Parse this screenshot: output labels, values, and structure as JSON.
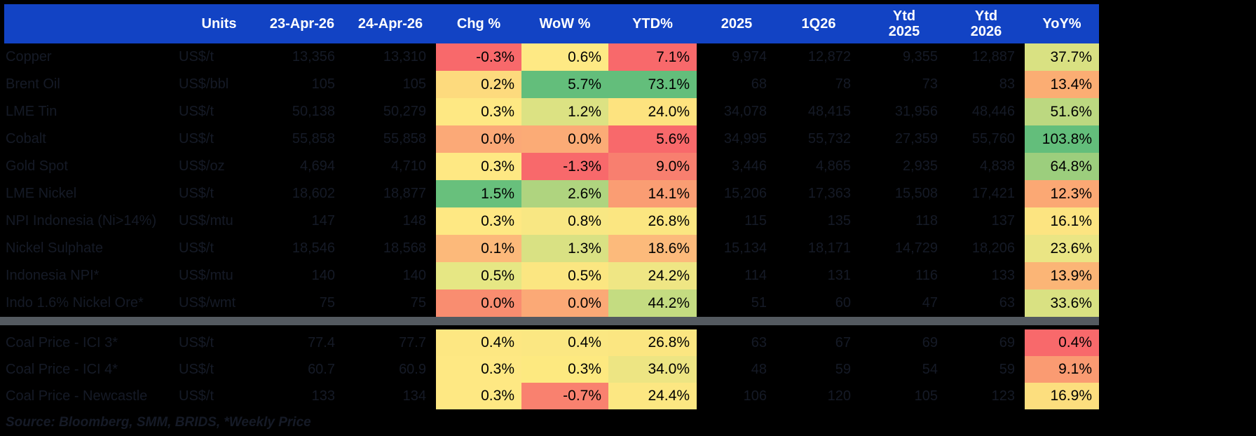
{
  "colors": {
    "background": "#000000",
    "header_bg": "#1243C4",
    "header_text": "#FFFFFF",
    "dim_text": "#151A26",
    "percent_text": "#000000",
    "separator": "#545A60"
  },
  "chart_data": {
    "type": "table",
    "title": "",
    "separator_after_row": 10,
    "source_note": "Source: Bloomberg, SMM, BRIDS, *Weekly Price",
    "columns": [
      {
        "id": "name",
        "label": ""
      },
      {
        "id": "units",
        "label": "Units"
      },
      {
        "id": "apr23",
        "label": "23-Apr-26"
      },
      {
        "id": "apr24",
        "label": "24-Apr-26"
      },
      {
        "id": "chg",
        "label": "Chg %",
        "heat": true
      },
      {
        "id": "wow",
        "label": "WoW %",
        "heat": true
      },
      {
        "id": "ytd",
        "label": "YTD%",
        "heat": true
      },
      {
        "id": "y2025",
        "label": "2025"
      },
      {
        "id": "q126",
        "label": "1Q26"
      },
      {
        "id": "ytd2025",
        "label": "Ytd",
        "label2": "2025"
      },
      {
        "id": "ytd2026",
        "label": "Ytd",
        "label2": "2026"
      },
      {
        "id": "yoy",
        "label": "YoY%",
        "heat": true
      }
    ],
    "rows": [
      {
        "name": "Copper",
        "units": "US$/t",
        "apr23": "13,356",
        "apr24": "13,310",
        "chg": "-0.3%",
        "chg_bg": "#F8696B",
        "wow": "0.6%",
        "wow_bg": "#FEE984",
        "ytd": "7.1%",
        "ytd_bg": "#F8696B",
        "y2025": "9,974",
        "q126": "12,872",
        "ytd2025": "9,355",
        "ytd2026": "12,887",
        "yoy": "37.7%",
        "yoy_bg": "#D9E182"
      },
      {
        "name": "Brent Oil",
        "units": "US$/bbl",
        "apr23": "105",
        "apr24": "105",
        "chg": "0.2%",
        "chg_bg": "#FDDA7D",
        "wow": "5.7%",
        "wow_bg": "#63BE7B",
        "ytd": "73.1%",
        "ytd_bg": "#63BE7B",
        "y2025": "68",
        "q126": "78",
        "ytd2025": "73",
        "ytd2026": "83",
        "yoy": "13.4%",
        "yoy_bg": "#FBAD73"
      },
      {
        "name": "LME Tin",
        "units": "US$/t",
        "apr23": "50,138",
        "apr24": "50,279",
        "chg": "0.3%",
        "chg_bg": "#FEE883",
        "wow": "1.2%",
        "wow_bg": "#DCE283",
        "ytd": "24.0%",
        "ytd_bg": "#FDE37F",
        "y2025": "34,078",
        "q126": "48,415",
        "ytd2025": "31,956",
        "ytd2026": "48,446",
        "yoy": "51.6%",
        "yoy_bg": "#BCD880"
      },
      {
        "name": "Cobalt",
        "units": "US$/t",
        "apr23": "55,858",
        "apr24": "55,858",
        "chg": "0.0%",
        "chg_bg": "#FBA977",
        "wow": "0.0%",
        "wow_bg": "#FBAB76",
        "ytd": "5.6%",
        "ytd_bg": "#F8696B",
        "y2025": "34,995",
        "q126": "55,732",
        "ytd2025": "27,359",
        "ytd2026": "55,760",
        "yoy": "103.8%",
        "yoy_bg": "#63BE7B"
      },
      {
        "name": "Gold Spot",
        "units": "US$/oz",
        "apr23": "4,694",
        "apr24": "4,710",
        "chg": "0.3%",
        "chg_bg": "#FEE883",
        "wow": "-1.3%",
        "wow_bg": "#F8696B",
        "ytd": "9.0%",
        "ytd_bg": "#F87F6F",
        "y2025": "3,446",
        "q126": "4,865",
        "ytd2025": "2,935",
        "ytd2026": "4,838",
        "yoy": "64.8%",
        "yoy_bg": "#9CCE7D"
      },
      {
        "name": "LME Nickel",
        "units": "US$/t",
        "apr23": "18,602",
        "apr24": "18,877",
        "chg": "1.5%",
        "chg_bg": "#68C07C",
        "wow": "2.6%",
        "wow_bg": "#AFD47F",
        "ytd": "14.1%",
        "ytd_bg": "#FA9D73",
        "y2025": "15,206",
        "q126": "17,363",
        "ytd2025": "15,508",
        "ytd2026": "17,421",
        "yoy": "12.3%",
        "yoy_bg": "#FBA874"
      },
      {
        "name": "NPI Indonesia (Ni>14%)",
        "units": "US$/mtu",
        "apr23": "147",
        "apr24": "148",
        "chg": "0.3%",
        "chg_bg": "#FEE883",
        "wow": "0.8%",
        "wow_bg": "#F8E783",
        "ytd": "26.8%",
        "ytd_bg": "#FBE681",
        "y2025": "115",
        "q126": "135",
        "ytd2025": "118",
        "ytd2026": "137",
        "yoy": "16.1%",
        "yoy_bg": "#FCE481"
      },
      {
        "name": "Nickel Sulphate",
        "units": "US$/t",
        "apr23": "18,546",
        "apr24": "18,568",
        "chg": "0.1%",
        "chg_bg": "#FCB97A",
        "wow": "1.3%",
        "wow_bg": "#D9E183",
        "ytd": "18.6%",
        "ytd_bg": "#FCBA7B",
        "y2025": "15,134",
        "q126": "18,171",
        "ytd2025": "14,729",
        "ytd2026": "18,206",
        "yoy": "23.6%",
        "yoy_bg": "#EAE584"
      },
      {
        "name": "Indonesia NPI*",
        "units": "US$/mtu",
        "apr23": "140",
        "apr24": "140",
        "chg": "0.5%",
        "chg_bg": "#E6E784",
        "wow": "0.5%",
        "wow_bg": "#FBE681",
        "ytd": "24.2%",
        "ytd_bg": "#EFE684",
        "y2025": "114",
        "q126": "131",
        "ytd2025": "116",
        "ytd2026": "133",
        "yoy": "13.9%",
        "yoy_bg": "#FBB576"
      },
      {
        "name": "Indo 1.6% Nickel Ore*",
        "units": "US$/wmt",
        "apr23": "75",
        "apr24": "75",
        "chg": "0.0%",
        "chg_bg": "#F98D70",
        "wow": "0.0%",
        "wow_bg": "#FBA976",
        "ytd": "44.2%",
        "ytd_bg": "#C4DC81",
        "y2025": "51",
        "q126": "60",
        "ytd2025": "47",
        "ytd2026": "63",
        "yoy": "33.6%",
        "yoy_bg": "#D9E182"
      },
      {
        "name": "Coal Price - ICI 3*",
        "units": "US$/t",
        "apr23": "77.4",
        "apr24": "77.7",
        "chg": "0.4%",
        "chg_bg": "#FDE782",
        "wow": "0.4%",
        "wow_bg": "#FBE782",
        "ytd": "26.8%",
        "ytd_bg": "#FBE681",
        "y2025": "63",
        "q126": "67",
        "ytd2025": "69",
        "ytd2026": "69",
        "yoy": "0.4%",
        "yoy_bg": "#F8696B"
      },
      {
        "name": "Coal Price - ICI 4*",
        "units": "US$/t",
        "apr23": "60.7",
        "apr24": "60.9",
        "chg": "0.3%",
        "chg_bg": "#FEE883",
        "wow": "0.3%",
        "wow_bg": "#FDE980",
        "ytd": "34.0%",
        "ytd_bg": "#EDE583",
        "y2025": "48",
        "q126": "59",
        "ytd2025": "54",
        "ytd2026": "59",
        "yoy": "9.1%",
        "yoy_bg": "#FA9B72"
      },
      {
        "name": "Coal Price - Newcastle",
        "units": "US$/t",
        "apr23": "133",
        "apr24": "134",
        "chg": "0.3%",
        "chg_bg": "#FEE883",
        "wow": "-0.7%",
        "wow_bg": "#F9816F",
        "ytd": "24.4%",
        "ytd_bg": "#FCE782",
        "y2025": "106",
        "q126": "120",
        "ytd2025": "105",
        "ytd2026": "123",
        "yoy": "16.9%",
        "yoy_bg": "#FCDE7E"
      }
    ]
  }
}
